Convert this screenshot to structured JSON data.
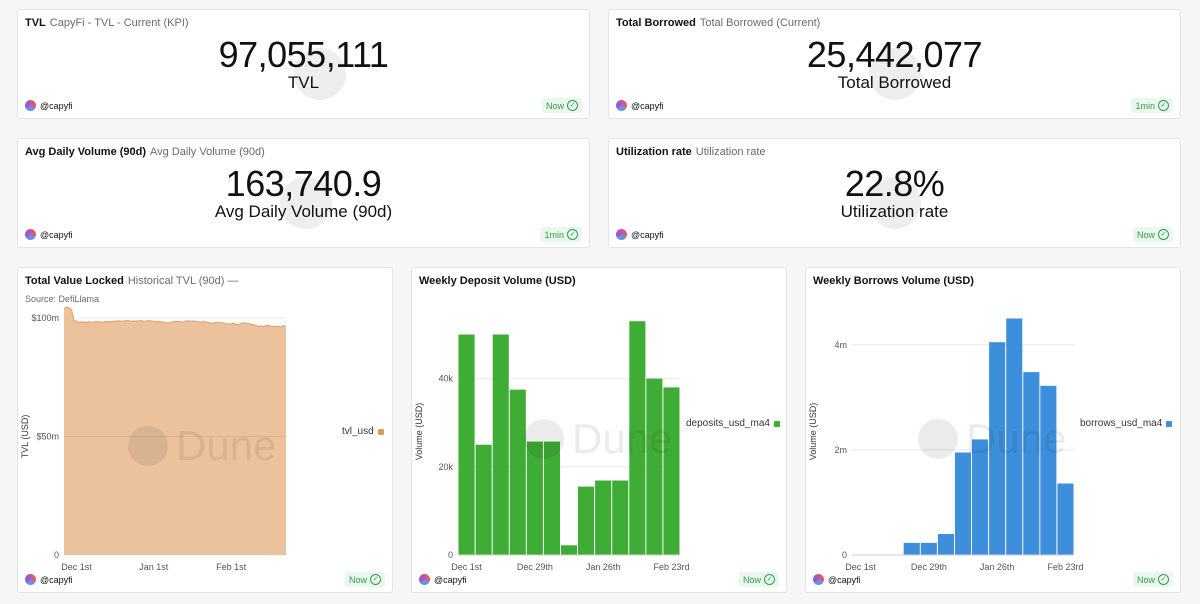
{
  "kpis": [
    {
      "title": "TVL",
      "subtitle": "CapyFi - TVL - Current (KPI)",
      "value": "97,055,111",
      "label": "TVL",
      "user": "@capyfi",
      "badge": "Now"
    },
    {
      "title": "Total Borrowed",
      "subtitle": "Total Borrowed (Current)",
      "value": "25,442,077",
      "label": "Total Borrowed",
      "user": "@capyfi",
      "badge": "1min"
    },
    {
      "title": "Avg Daily Volume (90d)",
      "subtitle": "Avg Daily Volume (90d)",
      "value": "163,740.9",
      "label": "Avg Daily Volume (90d)",
      "user": "@capyfi",
      "badge": "1min"
    },
    {
      "title": "Utilization rate",
      "subtitle": "Utilization rate",
      "value": "22.8%",
      "label": "Utilization rate",
      "user": "@capyfi",
      "badge": "Now"
    }
  ],
  "charts": [
    {
      "title": "Total Value Locked",
      "subtitle": "Historical TVL (90d) —",
      "source": "Source: DefiLlama",
      "user": "@capyfi",
      "badge": "Now",
      "watermark": "Dune"
    },
    {
      "title": "Weekly Deposit Volume (USD)",
      "user": "@capyfi",
      "badge": "Now",
      "watermark": "Dune"
    },
    {
      "title": "Weekly Borrows Volume (USD)",
      "user": "@capyfi",
      "badge": "Now",
      "watermark": "Dune"
    }
  ],
  "chart_data": [
    {
      "type": "area",
      "title": "Total Value Locked",
      "ylabel": "TVL (USD)",
      "xlabel": "",
      "ylim": [
        0,
        100000000
      ],
      "yticks": [
        {
          "v": 0,
          "label": "0"
        },
        {
          "v": 50000000,
          "label": "$50m"
        },
        {
          "v": 100000000,
          "label": "$100m"
        }
      ],
      "xticks": [
        {
          "i": 5,
          "label": "Dec 1st"
        },
        {
          "i": 36,
          "label": "Jan 1st"
        },
        {
          "i": 67,
          "label": "Feb 1st"
        }
      ],
      "series": [
        {
          "name": "tvl_usd",
          "color": "#e8ae80"
        }
      ],
      "values": [
        104,
        104.5,
        104.3,
        103.6,
        99,
        98.5,
        98.2,
        98.4,
        98.3,
        98.1,
        98.4,
        98.2,
        98.3,
        98.5,
        98.4,
        98.2,
        98.3,
        98.6,
        98.5,
        98.4,
        98.6,
        98.7,
        98.8,
        98.6,
        98.7,
        98.9,
        98.8,
        98.6,
        98.7,
        98.7,
        98.8,
        98.9,
        98.6,
        98.7,
        98.8,
        98.8,
        98.6,
        98.5,
        98.6,
        98.4,
        98.2,
        98,
        97.9,
        98.1,
        98.5,
        98.6,
        98.5,
        98.3,
        98.4,
        98.7,
        98.8,
        98.6,
        98.7,
        98.6,
        98.4,
        98.3,
        98.6,
        98.2,
        98.1,
        97.8,
        97.8,
        98.2,
        98.1,
        98,
        97.9,
        97.6,
        97.4,
        97.5,
        97.8,
        97.2,
        97.3,
        97.6,
        98,
        97.8,
        97.6,
        97.4,
        97.2,
        96.8,
        96.4,
        96.6,
        96.3,
        96.8,
        96.9,
        96.5,
        96.4,
        96.4,
        96.6,
        96.2,
        96.8,
        96.3
      ]
    },
    {
      "type": "bar",
      "title": "Weekly Deposit Volume (USD)",
      "ylabel": "Volume (USD)",
      "ylim": [
        0,
        56000
      ],
      "yticks": [
        {
          "v": 0,
          "label": "0"
        },
        {
          "v": 20000,
          "label": "20k"
        },
        {
          "v": 40000,
          "label": "40k"
        }
      ],
      "xticks": [
        {
          "i": 0,
          "label": "Dec 1st"
        },
        {
          "i": 4,
          "label": "Dec 29th"
        },
        {
          "i": 8,
          "label": "Jan 26th"
        },
        {
          "i": 12,
          "label": "Feb 23rd"
        }
      ],
      "series": [
        {
          "name": "deposits_usd_ma4",
          "color": "#3fad35"
        }
      ],
      "values": [
        50000,
        25000,
        50000,
        37500,
        25700,
        25700,
        2200,
        15500,
        16900,
        16900,
        53000,
        40000,
        38000
      ]
    },
    {
      "type": "bar",
      "title": "Weekly Borrows Volume (USD)",
      "ylabel": "Volume (USD)",
      "ylim": [
        0,
        4700000
      ],
      "yticks": [
        {
          "v": 0,
          "label": "0"
        },
        {
          "v": 2000000,
          "label": "2m"
        },
        {
          "v": 4000000,
          "label": "4m"
        }
      ],
      "xticks": [
        {
          "i": 0,
          "label": "Dec 1st"
        },
        {
          "i": 4,
          "label": "Dec 29th"
        },
        {
          "i": 8,
          "label": "Jan 26th"
        },
        {
          "i": 12,
          "label": "Feb 23rd"
        }
      ],
      "series": [
        {
          "name": "borrows_usd_ma4",
          "color": "#3d8fdc"
        }
      ],
      "values": [
        0,
        0,
        0,
        230000,
        230000,
        400000,
        1950000,
        2200000,
        4050000,
        4500000,
        3480000,
        3220000,
        1360000
      ]
    }
  ]
}
